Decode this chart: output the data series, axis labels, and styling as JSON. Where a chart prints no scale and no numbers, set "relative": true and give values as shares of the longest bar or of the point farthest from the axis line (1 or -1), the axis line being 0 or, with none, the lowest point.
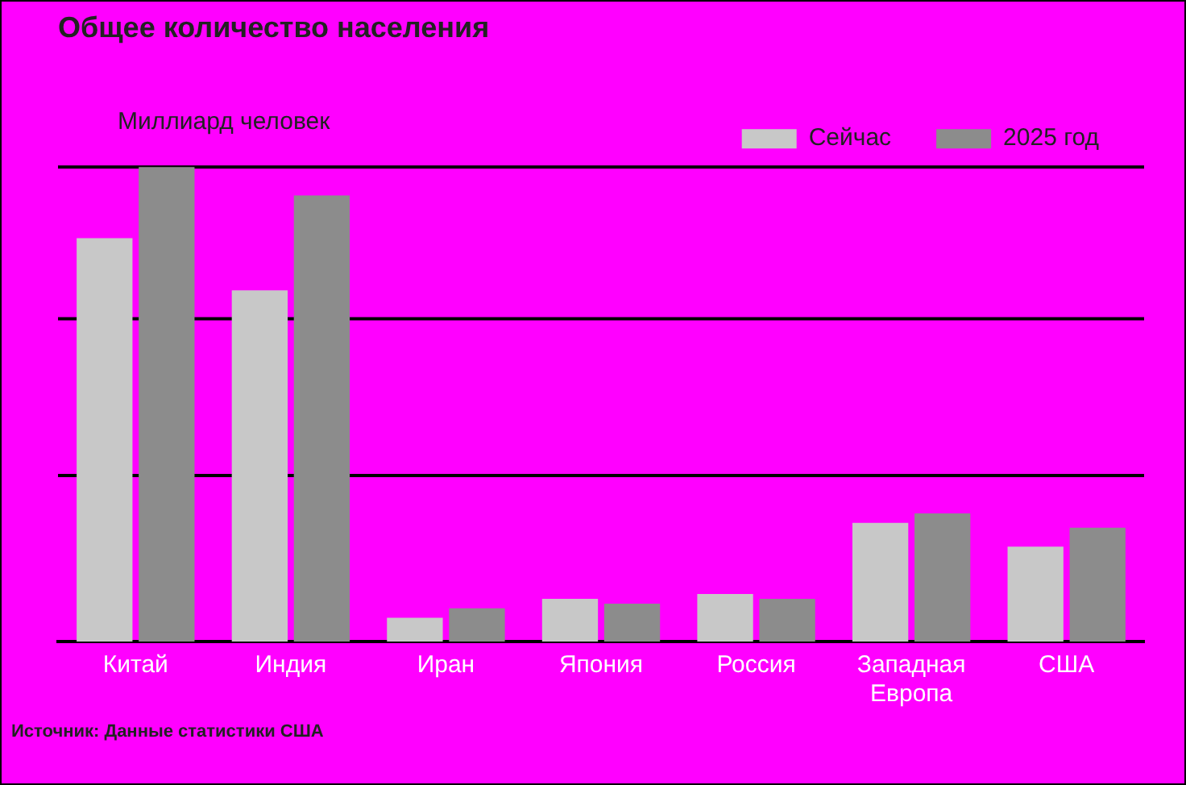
{
  "chart_data": {
    "type": "bar",
    "title": "Общее количество населения",
    "ylabel": "Миллиард человек",
    "relative": true,
    "legend": "top",
    "ref_lines": [
      {
        "axis": "y",
        "value": 0.35
      },
      {
        "axis": "y",
        "value": 0.68
      },
      {
        "axis": "y",
        "value": 1
      }
    ],
    "categories": [
      "Китай",
      "Индия",
      "Иран",
      "Япония",
      "Россия",
      "Западная Европа",
      "США"
    ],
    "series": [
      {
        "name": "Сейчас",
        "color": "#c8c8c8",
        "values": [
          0.85,
          0.74,
          0.05,
          0.09,
          0.1,
          0.25,
          0.2
        ]
      },
      {
        "name": "2025 год",
        "color": "#8c8c8c",
        "values": [
          1,
          0.94,
          0.07,
          0.08,
          0.09,
          0.27,
          0.24
        ]
      }
    ],
    "annotations": [
      "Источник: Данные статистики США"
    ]
  }
}
